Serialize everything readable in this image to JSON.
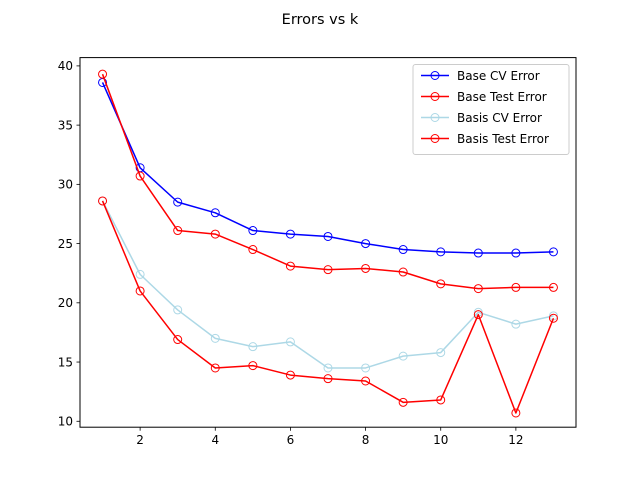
{
  "chart_data": {
    "type": "line",
    "title": "Errors vs k",
    "xlabel": "",
    "ylabel": "",
    "xlim": [
      0.4,
      13.6
    ],
    "ylim": [
      9.5,
      40.7
    ],
    "xticks": [
      2,
      4,
      6,
      8,
      10,
      12
    ],
    "yticks": [
      10,
      15,
      20,
      25,
      30,
      35,
      40
    ],
    "grid": false,
    "legend_position": "top-right",
    "x": [
      1,
      2,
      3,
      4,
      5,
      6,
      7,
      8,
      9,
      10,
      11,
      12,
      13
    ],
    "series": [
      {
        "name": "Base CV Error",
        "color": "#0000ff",
        "values": [
          38.6,
          31.4,
          28.5,
          27.6,
          26.1,
          25.8,
          25.6,
          25.0,
          24.5,
          24.3,
          24.2,
          24.2,
          24.3
        ]
      },
      {
        "name": "Base Test Error",
        "color": "#ff0000",
        "values": [
          39.3,
          30.7,
          26.1,
          25.8,
          24.5,
          23.1,
          22.8,
          22.9,
          22.6,
          21.6,
          21.2,
          21.3,
          21.3
        ]
      },
      {
        "name": "Basis CV Error",
        "color": "#add8e6",
        "values": [
          28.6,
          22.4,
          19.4,
          17.0,
          16.3,
          16.7,
          14.5,
          14.5,
          15.5,
          15.8,
          19.2,
          18.2,
          18.9
        ]
      },
      {
        "name": "Basis Test Error",
        "color": "#ff0000",
        "values": [
          28.6,
          21.0,
          16.9,
          14.5,
          14.7,
          13.9,
          13.6,
          13.4,
          11.6,
          11.8,
          19.0,
          10.7,
          18.7
        ]
      }
    ]
  }
}
